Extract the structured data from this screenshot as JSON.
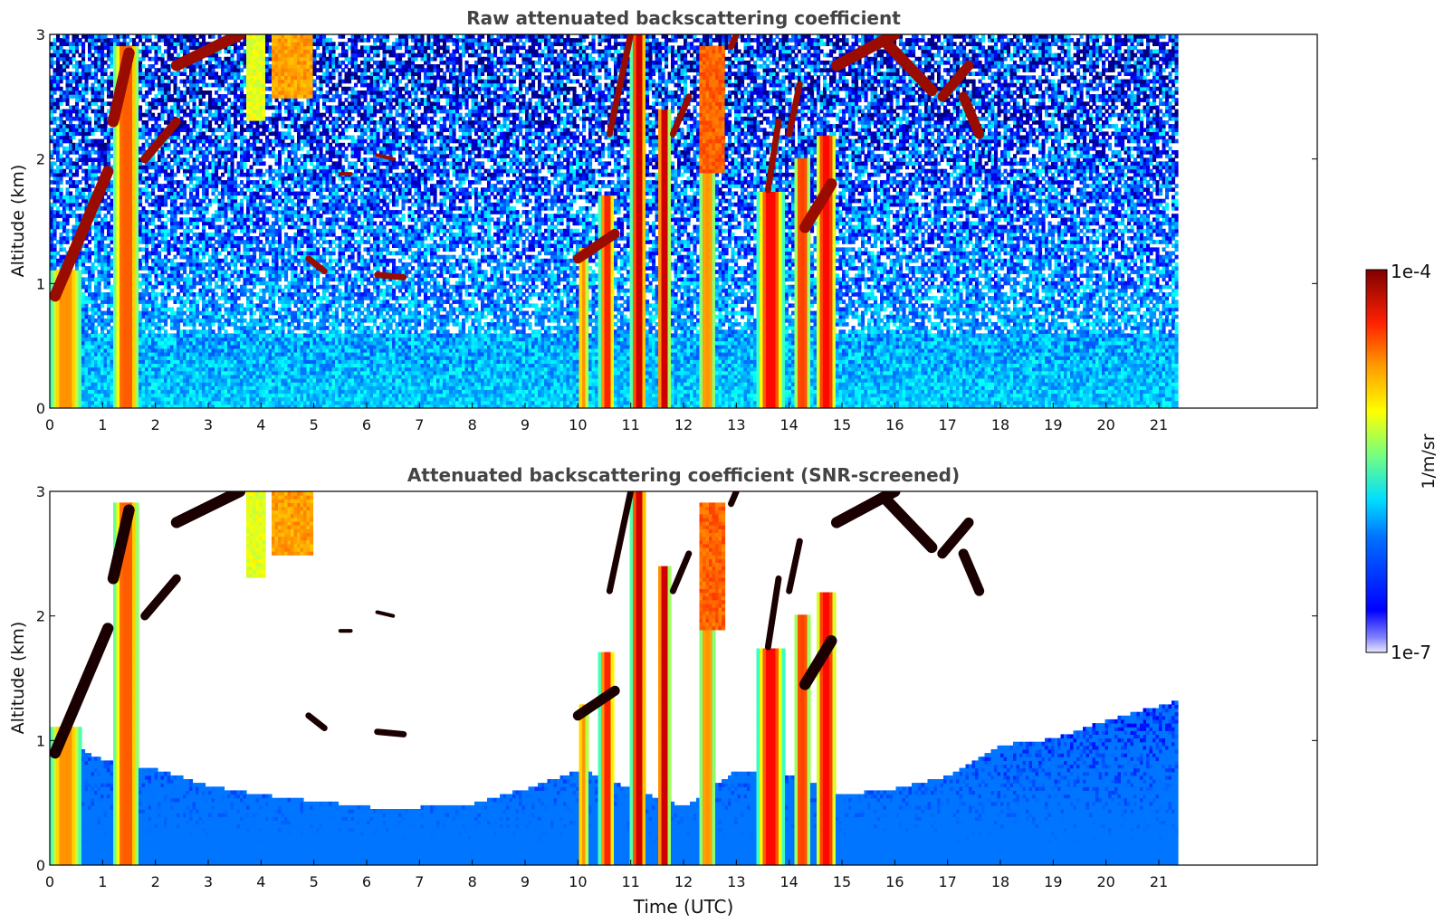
{
  "chart_data": [
    {
      "type": "heatmap",
      "title": "Raw attenuated backscattering coefficient",
      "xlabel": "",
      "ylabel": "Altitude (km)",
      "xlim": [
        0,
        24
      ],
      "ylim": [
        0,
        3
      ],
      "xticks": [
        0,
        1,
        2,
        3,
        4,
        5,
        6,
        7,
        8,
        9,
        10,
        11,
        12,
        13,
        14,
        15,
        16,
        17,
        18,
        19,
        20,
        21
      ],
      "yticks": [
        0,
        1,
        2
      ],
      "ytick_top": 3,
      "data_x_end": 21.3,
      "screened": false
    },
    {
      "type": "heatmap",
      "title": "Attenuated backscattering coefficient (SNR-screened)",
      "xlabel": "Time (UTC)",
      "ylabel": "Altitude (km)",
      "xlim": [
        0,
        24
      ],
      "ylim": [
        0,
        3
      ],
      "xticks": [
        0,
        1,
        2,
        3,
        4,
        5,
        6,
        7,
        8,
        9,
        10,
        11,
        12,
        13,
        14,
        15,
        16,
        17,
        18,
        19,
        20,
        21
      ],
      "yticks": [
        0,
        1,
        2
      ],
      "ytick_top": 3,
      "data_x_end": 21.3,
      "screened": true
    }
  ],
  "colorbar": {
    "label": "1/m/sr",
    "max_label": "1e-4",
    "min_label": "1e-7",
    "colormap": "jet",
    "scale": "log",
    "range": [
      1e-07,
      0.0001
    ]
  },
  "features": {
    "clouds": [
      {
        "t0": 0.0,
        "t1": 0.6,
        "h0": 0.0,
        "h1": 1.1,
        "strength": 0.6
      },
      {
        "t0": 1.2,
        "t1": 1.7,
        "h0": 0.0,
        "h1": 2.9,
        "strength": 0.7
      },
      {
        "t0": 10.0,
        "t1": 10.2,
        "h0": 0.0,
        "h1": 1.3,
        "strength": 0.6
      },
      {
        "t0": 10.4,
        "t1": 10.7,
        "h0": 0.0,
        "h1": 1.7,
        "strength": 0.8
      },
      {
        "t0": 11.0,
        "t1": 11.3,
        "h0": 0.0,
        "h1": 3.0,
        "strength": 0.95
      },
      {
        "t0": 11.5,
        "t1": 11.75,
        "h0": 0.0,
        "h1": 2.4,
        "strength": 0.95
      },
      {
        "t0": 12.3,
        "t1": 12.6,
        "h0": 0.0,
        "h1": 2.1,
        "strength": 0.6
      },
      {
        "t0": 13.4,
        "t1": 13.9,
        "h0": 0.0,
        "h1": 1.75,
        "strength": 0.85
      },
      {
        "t0": 14.1,
        "t1": 14.4,
        "h0": 0.0,
        "h1": 2.0,
        "strength": 0.75
      },
      {
        "t0": 14.5,
        "t1": 14.9,
        "h0": 0.0,
        "h1": 2.2,
        "strength": 0.85
      }
    ],
    "aerosol": [
      {
        "t0": 3.7,
        "t1": 4.1,
        "h0": 2.3,
        "h1": 3.0,
        "strength": 0.6
      },
      {
        "t0": 4.2,
        "t1": 5.0,
        "h0": 2.5,
        "h1": 3.0,
        "strength": 0.72
      },
      {
        "t0": 12.3,
        "t1": 12.8,
        "h0": 1.9,
        "h1": 2.9,
        "strength": 0.78
      }
    ],
    "streaks": [
      {
        "t0": 0.1,
        "h0": 0.9,
        "t1": 1.1,
        "h1": 1.9,
        "w": 0.09
      },
      {
        "t0": 1.2,
        "h0": 2.3,
        "t1": 1.5,
        "h1": 2.85,
        "w": 0.09
      },
      {
        "t0": 1.8,
        "h0": 2.0,
        "t1": 2.4,
        "h1": 2.3,
        "w": 0.07
      },
      {
        "t0": 2.4,
        "h0": 2.75,
        "t1": 3.6,
        "h1": 3.0,
        "w": 0.09
      },
      {
        "t0": 4.9,
        "h0": 1.2,
        "t1": 5.2,
        "h1": 1.1,
        "w": 0.05
      },
      {
        "t0": 6.2,
        "h0": 1.07,
        "t1": 6.7,
        "h1": 1.05,
        "w": 0.05
      },
      {
        "t0": 6.2,
        "h0": 2.03,
        "t1": 6.5,
        "h1": 2.0,
        "w": 0.03
      },
      {
        "t0": 5.5,
        "h0": 1.88,
        "t1": 5.7,
        "h1": 1.88,
        "w": 0.03
      },
      {
        "t0": 10.0,
        "h0": 1.2,
        "t1": 10.7,
        "h1": 1.4,
        "w": 0.08
      },
      {
        "t0": 10.6,
        "h0": 2.2,
        "t1": 11.0,
        "h1": 3.0,
        "w": 0.05
      },
      {
        "t0": 11.8,
        "h0": 2.2,
        "t1": 12.1,
        "h1": 2.5,
        "w": 0.05
      },
      {
        "t0": 12.9,
        "h0": 2.9,
        "t1": 13.0,
        "h1": 3.0,
        "w": 0.05
      },
      {
        "t0": 13.6,
        "h0": 1.75,
        "t1": 13.8,
        "h1": 2.3,
        "w": 0.05
      },
      {
        "t0": 14.0,
        "h0": 2.2,
        "t1": 14.2,
        "h1": 2.6,
        "w": 0.05
      },
      {
        "t0": 14.3,
        "h0": 1.45,
        "t1": 14.8,
        "h1": 1.8,
        "w": 0.09
      },
      {
        "t0": 14.9,
        "h0": 2.75,
        "t1": 16.0,
        "h1": 3.0,
        "w": 0.09
      },
      {
        "t0": 15.8,
        "h0": 2.95,
        "t1": 16.7,
        "h1": 2.55,
        "w": 0.09
      },
      {
        "t0": 16.9,
        "h0": 2.5,
        "t1": 17.4,
        "h1": 2.75,
        "w": 0.08
      },
      {
        "t0": 17.3,
        "h0": 2.5,
        "t1": 17.6,
        "h1": 2.2,
        "w": 0.08
      }
    ],
    "screen_boundary": [
      {
        "t": 0.0,
        "h": 1.1
      },
      {
        "t": 0.5,
        "h": 0.95
      },
      {
        "t": 0.8,
        "h": 0.85
      },
      {
        "t": 2.0,
        "h": 0.75
      },
      {
        "t": 3.0,
        "h": 0.62
      },
      {
        "t": 4.0,
        "h": 0.55
      },
      {
        "t": 5.0,
        "h": 0.5
      },
      {
        "t": 6.0,
        "h": 0.45
      },
      {
        "t": 7.0,
        "h": 0.45
      },
      {
        "t": 8.0,
        "h": 0.48
      },
      {
        "t": 9.0,
        "h": 0.6
      },
      {
        "t": 10.0,
        "h": 0.75
      },
      {
        "t": 11.0,
        "h": 0.6
      },
      {
        "t": 12.0,
        "h": 0.45
      },
      {
        "t": 13.0,
        "h": 0.75
      },
      {
        "t": 14.0,
        "h": 0.7
      },
      {
        "t": 15.0,
        "h": 0.55
      },
      {
        "t": 16.0,
        "h": 0.6
      },
      {
        "t": 17.0,
        "h": 0.7
      },
      {
        "t": 17.6,
        "h": 0.85
      },
      {
        "t": 18.0,
        "h": 0.95
      },
      {
        "t": 19.0,
        "h": 1.0
      },
      {
        "t": 20.0,
        "h": 1.15
      },
      {
        "t": 21.3,
        "h": 1.3
      }
    ]
  }
}
